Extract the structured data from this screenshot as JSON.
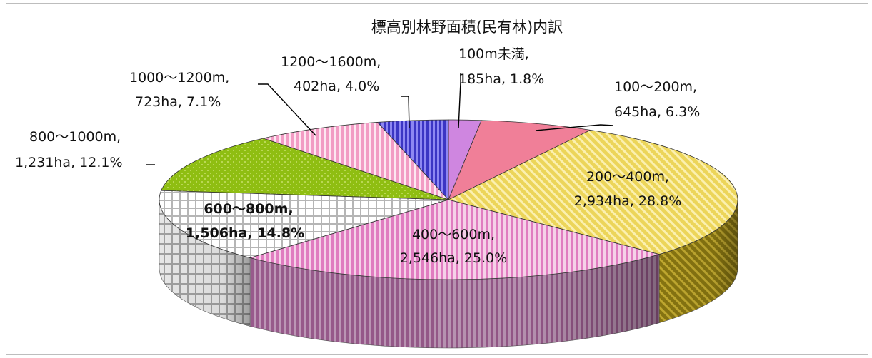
{
  "chart_data": {
    "type": "pie",
    "title": "標高別林野面積(民有林)内訳",
    "slices": [
      {
        "label": "100m未満",
        "ha": "185ha",
        "pct": "1.8%",
        "value": 185,
        "color": "#cf86e0",
        "pattern": "solid"
      },
      {
        "label": "100～200m",
        "ha": "645ha",
        "pct": "6.3%",
        "value": 645,
        "color": "#f07f98",
        "pattern": "solid"
      },
      {
        "label": "200～400m",
        "ha": "2,934ha",
        "pct": "28.8%",
        "value": 2934,
        "color": "#ecd55a",
        "pattern": "diagonal"
      },
      {
        "label": "400～600m",
        "ha": "2,546ha",
        "pct": "25.0%",
        "value": 2546,
        "color": "#e993c8",
        "pattern": "vertical"
      },
      {
        "label": "600～800m",
        "ha": "1,506ha",
        "pct": "14.8%",
        "value": 1506,
        "color": "#e0e0e0",
        "pattern": "grid"
      },
      {
        "label": "800～1000m",
        "ha": "1,231ha",
        "pct": "12.1%",
        "value": 1231,
        "color": "#8fbe12",
        "pattern": "dots"
      },
      {
        "label": "1000～1200m",
        "ha": "723ha",
        "pct": "7.1%",
        "value": 723,
        "color": "#f3a6c6",
        "pattern": "vertical"
      },
      {
        "label": "1200～1600m",
        "ha": "402ha",
        "pct": "4.0%",
        "value": 402,
        "color": "#5e58dc",
        "pattern": "vertical"
      }
    ]
  }
}
